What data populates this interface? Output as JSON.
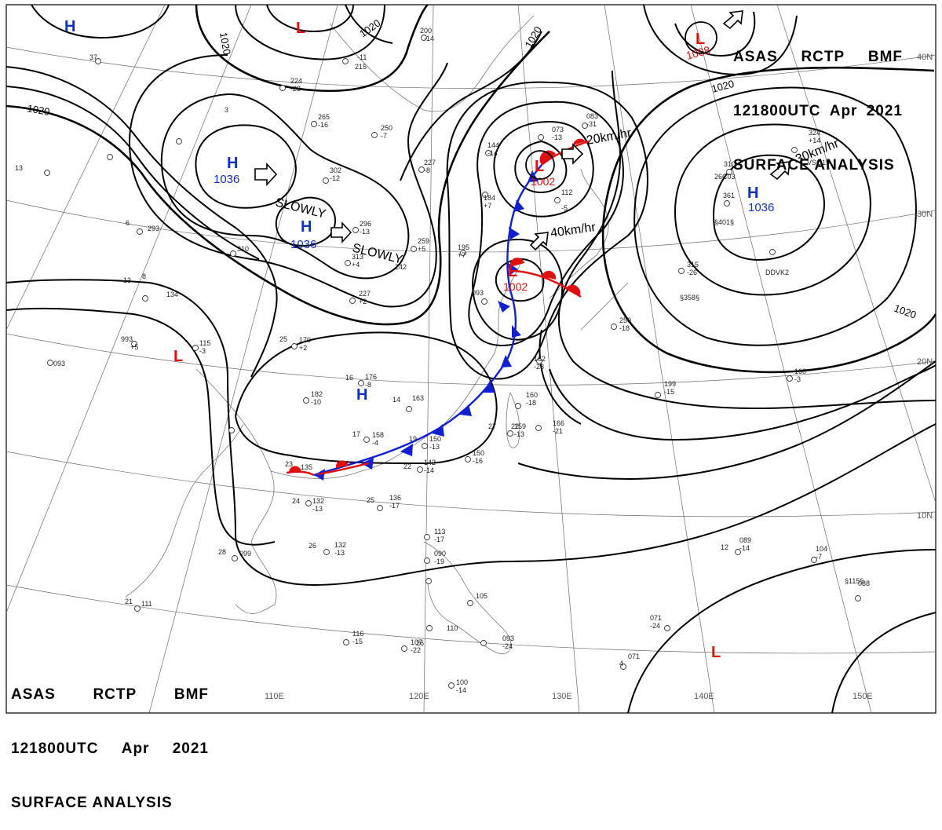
{
  "header": {
    "line1": [
      "ASAS",
      "RCTP",
      "BMF"
    ],
    "line2": [
      "121800UTC",
      "Apr",
      "2021"
    ],
    "line3": "SURFACE ANALYSIS"
  },
  "lon_labels": [
    "110E",
    "120E",
    "130E",
    "140E",
    "150E"
  ],
  "lat_labels": [
    "40N",
    "30N",
    "20N",
    "10N"
  ],
  "isobar_labels": [
    "1020",
    "1020",
    "1020",
    "1020",
    "1020",
    "1020"
  ],
  "pressure_centers": [
    {
      "symbol": "H",
      "value": "",
      "color": "#1030c0"
    },
    {
      "symbol": "L",
      "value": "",
      "color": "#e01010"
    },
    {
      "symbol": "L",
      "value": "1008",
      "color": "#e01010"
    },
    {
      "symbol": "H",
      "value": "1036",
      "color": "#1030c0"
    },
    {
      "symbol": "H",
      "value": "1036",
      "color": "#1030c0"
    },
    {
      "symbol": "L",
      "value": "1002",
      "color": "#e01010"
    },
    {
      "symbol": "L",
      "value": "1002",
      "color": "#e01010"
    },
    {
      "symbol": "H",
      "value": "1036",
      "color": "#1030c0"
    },
    {
      "symbol": "L",
      "value": "",
      "color": "#e01010"
    },
    {
      "symbol": "H",
      "value": "",
      "color": "#1030c0"
    },
    {
      "symbol": "L",
      "value": "",
      "color": "#e01010"
    }
  ],
  "motion_labels": [
    "SLOWLY",
    "SLOWLY",
    "20km/hr",
    "40km/hr",
    "30km/hr"
  ],
  "station_labels": [
    "200",
    "-14",
    "-11",
    "215",
    "224",
    "-28",
    "265",
    "-16",
    "250",
    "-7",
    "302",
    "-12",
    "296",
    "-13",
    "227",
    "-8",
    "313",
    "+4",
    "259",
    "+5",
    "242",
    "195",
    "+7",
    "227",
    "+2",
    "134",
    "293",
    "310",
    "993",
    "+5",
    "115",
    "-3",
    "170",
    "+2",
    "182",
    "-10",
    "176",
    "-8",
    "163",
    "158",
    "-4",
    "150",
    "-13",
    "150",
    "-16",
    "142",
    "-14",
    "135",
    "132",
    "-13",
    "136",
    "-17",
    "132",
    "-13",
    "099",
    "111",
    "116",
    "-15",
    "107",
    "-22",
    "113",
    "-17",
    "090",
    "-19",
    "105",
    "093",
    "-24",
    "100",
    "-14",
    "110",
    "160",
    "-18",
    "166",
    "-21",
    "159",
    "-13",
    "162",
    "-28",
    "250",
    "-18",
    "199",
    "-15",
    "160",
    "-3",
    "089",
    "-14",
    "104",
    "-7",
    "088",
    "071",
    "-24",
    "071",
    "315",
    "-26",
    "361",
    "310",
    "324",
    "+14",
    "112",
    "-5",
    "073",
    "-13",
    "083",
    "-31",
    "144",
    "-14",
    "184",
    "+7",
    "093",
    "§358§",
    "§401§",
    "26C03",
    "VSQ19",
    "DDVK2",
    "§115§",
    "093",
    "37",
    "13",
    "25",
    "16",
    "14",
    "17",
    "19",
    "22",
    "23",
    "24",
    "25",
    "26",
    "28",
    "21",
    "22",
    "27",
    "26",
    "4",
    "12",
    "13",
    "6",
    "8",
    "3"
  ]
}
